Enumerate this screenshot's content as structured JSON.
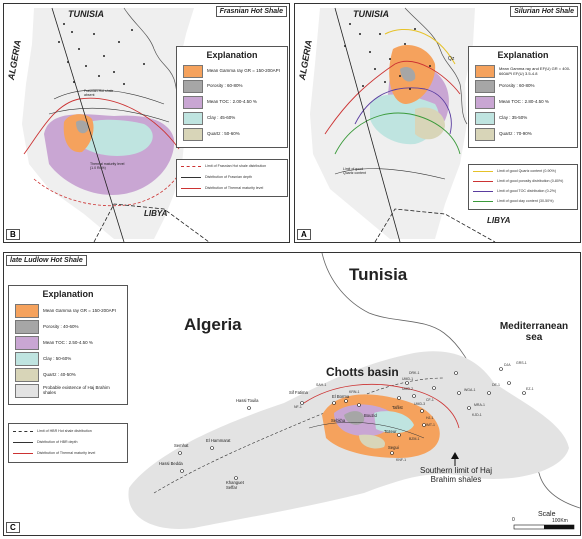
{
  "panel_b": {
    "letter": "B",
    "title": "Frasnian Hot Shale",
    "country_tunisia": "TUNISIA",
    "country_algeria": "ALGERIA",
    "country_libya": "LIBYA",
    "legend_title": "Explanation",
    "legend_items": [
      {
        "label": "Mean Gamma ray GR = 150-200API",
        "color": "#f5a25d"
      },
      {
        "label": "Porosity : 60-80%",
        "color": "#a6a6a6"
      },
      {
        "label": "Mean TOC : 2.00-4.50 %",
        "color": "#c9a6d3"
      },
      {
        "label": "Clay : 45-60%",
        "color": "#bfe4e0"
      },
      {
        "label": "Quartz : 50-60%",
        "color": "#d8d5b8"
      }
    ],
    "line_legend": [
      {
        "label": "Limit of Frasnian Hot shale distribution",
        "color": "#c33"
      },
      {
        "label": "Distribution of Frasnian depth",
        "color": "#333"
      },
      {
        "label": "Distribution of Thermal maturity level",
        "color": "#c33"
      }
    ],
    "map_labels": {
      "erosion": "Frasnian Hot shale absent",
      "thermal": "Thermal maturity level (1.0 Ro%)"
    }
  },
  "panel_a": {
    "letter": "A",
    "title": "Silurian Hot Shale",
    "country_tunisia": "TUNISIA",
    "country_algeria": "ALGERIA",
    "country_libya": "LIBYA",
    "legend_title": "Explanation",
    "legend_items": [
      {
        "label": "Mean Gamma ray and EF(U) GR = 400-660API EF(U) 3.5-4.8",
        "color": "#f5a25d"
      },
      {
        "label": "Porosity : 60-80%",
        "color": "#a6a6a6"
      },
      {
        "label": "Mean TOC : 2.80-4.50 %",
        "color": "#c9a6d3"
      },
      {
        "label": "Clay : 35-50%",
        "color": "#bfe4e0"
      },
      {
        "label": "Quartz : 70-90%",
        "color": "#d8d5b8"
      }
    ],
    "line_legend": [
      {
        "label": "Limit of good Quartz content (0-90%)",
        "color": "#e6c229"
      },
      {
        "label": "Limit of good porosity distribution (0-80%)",
        "color": "#c33"
      },
      {
        "label": "Limit of good TOC distribution (0-2%)",
        "color": "#5a3da0"
      },
      {
        "label": "Limit of good clay content (30-50%)",
        "color": "#3a9a3a"
      }
    ],
    "map_labels": {
      "qz": "Qz",
      "quartz": "Limit of good Quartz content"
    }
  },
  "panel_c": {
    "letter": "C",
    "title": "late Ludlow Hot Shale",
    "country_tunisia": "Tunisia",
    "country_algeria": "Algeria",
    "sea": "Mediterranean sea",
    "basin": "Chotts basin",
    "southern_limit": "Southern limit of Haj Brahim shales",
    "scale": "Scale",
    "scale_zero": "0",
    "scale_end": "100Km",
    "legend_title": "Explanation",
    "legend_items": [
      {
        "label": "Mean Gamma ray GR = 150-200API",
        "color": "#f5a25d"
      },
      {
        "label": "Porosity : 40-60%",
        "color": "#a6a6a6"
      },
      {
        "label": "Mean TOC : 2.50-4.50 %",
        "color": "#c9a6d3"
      },
      {
        "label": "Clay : 50-60%",
        "color": "#bfe4e0"
      },
      {
        "label": "Quartz : 40-50%",
        "color": "#d8d5b8"
      },
      {
        "label": "Probable existence of Haj Brahim shales",
        "color": "#e3e3e3"
      }
    ],
    "line_legend": [
      {
        "label": "Limit of HBR Hot shale distribution",
        "color": "#333"
      },
      {
        "label": "Distribution of HBR depth",
        "color": "#333"
      },
      {
        "label": "Distribution of Thermal maturity level",
        "color": "#c33"
      }
    ],
    "places": {
      "hassi_touila": "Hassi Touila",
      "semhat": "Semhat",
      "el_hammarat": "El Hammarat",
      "hassi_bedda": "Hassi Bedda",
      "khanguet": "Khanguet Seffar",
      "sif_fatima": "Sif Fatima",
      "el_borma": "El Borma",
      "sebika": "Sebkha",
      "bouzid": "Bouzid",
      "tozeur": "Tozeur",
      "taflist": "Taflist",
      "segui": "Segui"
    },
    "wells": [
      "NF-1",
      "SAH-1",
      "KRN-1",
      "UMD-1",
      "UMD-2",
      "UMD-3",
      "DRK-1",
      "CF-1",
      "HJ-1",
      "IMT-1",
      "BZM-1",
      "KNF-1",
      "WGA-1",
      "MRA-1",
      "KJD-1",
      "DE-1",
      "DJA",
      "EZ-1",
      "GRS-1"
    ]
  }
}
